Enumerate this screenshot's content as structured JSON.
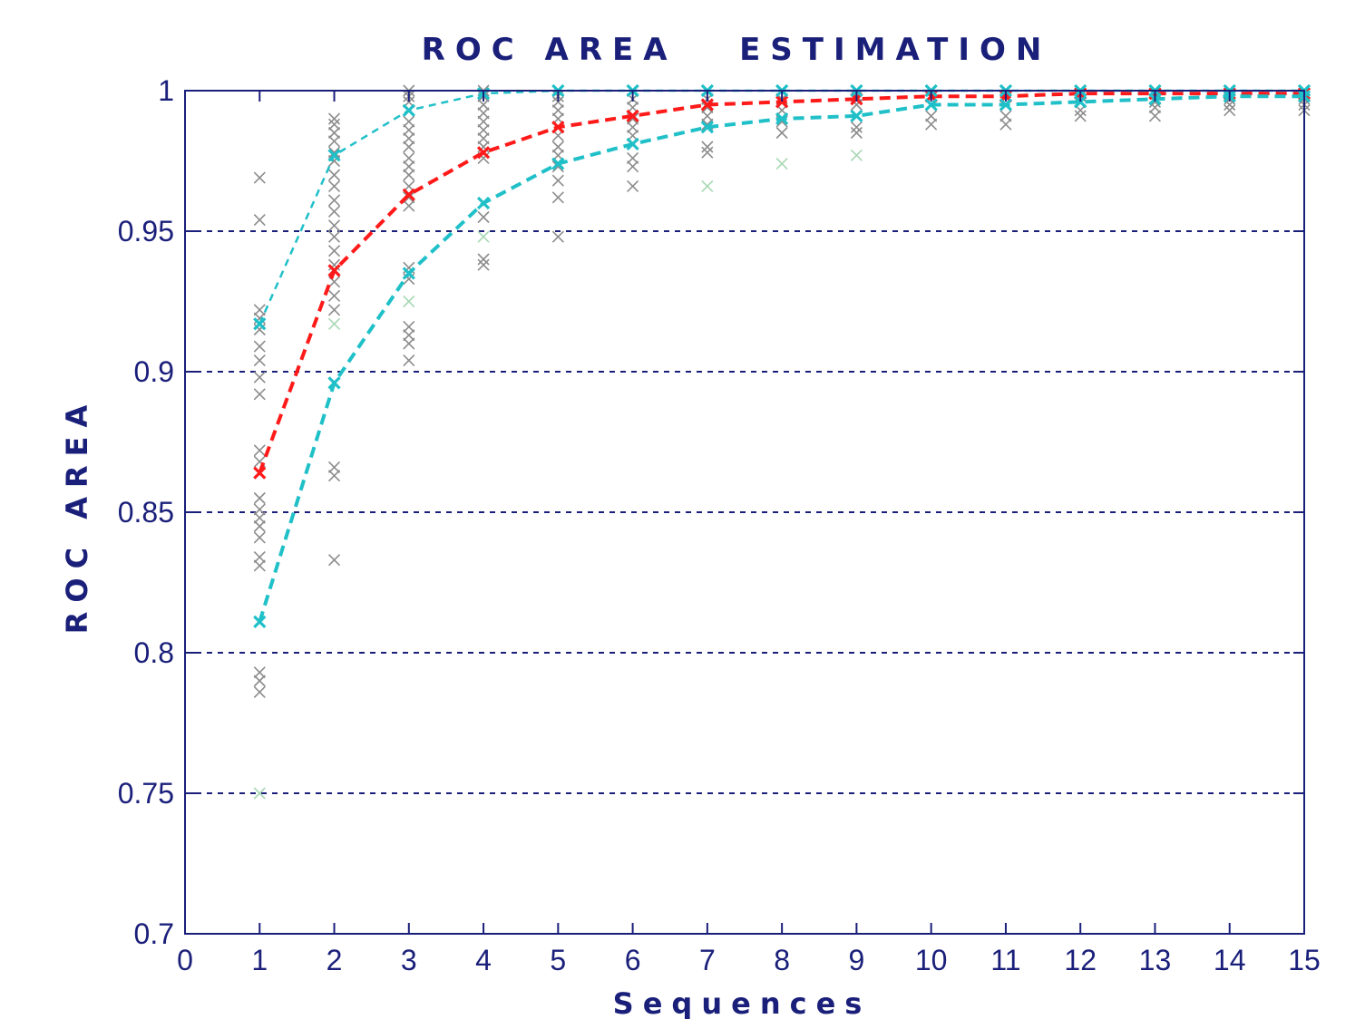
{
  "chart_data": {
    "type": "line",
    "title": "ROC AREA   ESTIMATION",
    "xlabel": "Sequences",
    "ylabel": "ROC AREA",
    "xlim": [
      0,
      15
    ],
    "ylim": [
      0.7,
      1
    ],
    "xticks": [
      "0",
      "1",
      "2",
      "3",
      "4",
      "5",
      "6",
      "7",
      "8",
      "9",
      "10",
      "11",
      "12",
      "13",
      "14",
      "15"
    ],
    "yticks": [
      {
        "value": 0.7,
        "label": "0.7"
      },
      {
        "value": 0.75,
        "label": "0.75"
      },
      {
        "value": 0.8,
        "label": "0.8"
      },
      {
        "value": 0.85,
        "label": "0.85"
      },
      {
        "value": 0.9,
        "label": "0.9"
      },
      {
        "value": 0.95,
        "label": "0.95"
      },
      {
        "value": 1,
        "label": "1"
      }
    ],
    "grid": "horizontal-dashed",
    "x": [
      1,
      2,
      3,
      4,
      5,
      6,
      7,
      8,
      9,
      10,
      11,
      12,
      13,
      14,
      15
    ],
    "series": [
      {
        "role": "mean",
        "color": "#ff1a1a",
        "style": "dashed-thick",
        "values": [
          0.864,
          0.936,
          0.963,
          0.978,
          0.987,
          0.991,
          0.995,
          0.996,
          0.997,
          0.998,
          0.998,
          0.999,
          0.999,
          0.999,
          0.999
        ]
      },
      {
        "role": "upper",
        "color": "#20c0c8",
        "style": "dashed-thin",
        "values": [
          0.917,
          0.977,
          0.993,
          0.999,
          1.0,
          1.0,
          1.0,
          1.0,
          1.0,
          1.0,
          1.0,
          1.0,
          1.0,
          1.0,
          1.0
        ]
      },
      {
        "role": "lower",
        "color": "#20c0c8",
        "style": "dashed-thick",
        "values": [
          0.811,
          0.896,
          0.935,
          0.96,
          0.974,
          0.981,
          0.987,
          0.99,
          0.991,
          0.995,
          0.995,
          0.996,
          0.997,
          0.998,
          0.998
        ]
      }
    ],
    "samples": [
      {
        "x": 1,
        "values": [
          0.969,
          0.954,
          0.922,
          0.919,
          0.915,
          0.909,
          0.904,
          0.898,
          0.892,
          0.872,
          0.868,
          0.855,
          0.851,
          0.848,
          0.845,
          0.841,
          0.834,
          0.831,
          0.793,
          0.79,
          0.786
        ]
      },
      {
        "x": 2,
        "values": [
          0.99,
          0.988,
          0.985,
          0.982,
          0.978,
          0.975,
          0.97,
          0.966,
          0.961,
          0.957,
          0.952,
          0.948,
          0.943,
          0.938,
          0.932,
          0.927,
          0.922,
          0.866,
          0.863,
          0.833
        ]
      },
      {
        "x": 3,
        "values": [
          1.0,
          0.998,
          0.996,
          0.993,
          0.989,
          0.986,
          0.983,
          0.98,
          0.976,
          0.973,
          0.97,
          0.966,
          0.962,
          0.959,
          0.937,
          0.933,
          0.916,
          0.913,
          0.91,
          0.904
        ]
      },
      {
        "x": 4,
        "values": [
          1.0,
          0.998,
          0.995,
          0.992,
          0.989,
          0.986,
          0.983,
          0.98,
          0.976,
          0.955,
          0.94,
          0.938
        ]
      },
      {
        "x": 5,
        "values": [
          1.0,
          0.998,
          0.996,
          0.993,
          0.99,
          0.987,
          0.984,
          0.98,
          0.977,
          0.973,
          0.968,
          0.962,
          0.948
        ]
      },
      {
        "x": 6,
        "values": [
          1.0,
          0.997,
          0.994,
          0.99,
          0.987,
          0.984,
          0.976,
          0.973,
          0.966
        ]
      },
      {
        "x": 7,
        "values": [
          1.0,
          0.997,
          0.994,
          0.991,
          0.988,
          0.98,
          0.978
        ]
      },
      {
        "x": 8,
        "values": [
          1.0,
          0.997,
          0.993,
          0.989,
          0.985
        ]
      },
      {
        "x": 9,
        "values": [
          1.0,
          0.998,
          0.995,
          0.987,
          0.985
        ]
      },
      {
        "x": 10,
        "values": [
          1.0,
          0.998,
          0.995,
          0.991,
          0.988
        ]
      },
      {
        "x": 11,
        "values": [
          1.0,
          0.998,
          0.995,
          0.991,
          0.988
        ]
      },
      {
        "x": 12,
        "values": [
          1.0,
          0.998,
          0.996,
          0.993,
          0.991
        ]
      },
      {
        "x": 13,
        "values": [
          1.0,
          0.999,
          0.996,
          0.994,
          0.991
        ]
      },
      {
        "x": 14,
        "values": [
          1.0,
          0.999,
          0.997,
          0.995,
          0.993
        ]
      },
      {
        "x": 15,
        "values": [
          1.0,
          0.999,
          0.997,
          0.995,
          0.993
        ]
      }
    ],
    "outliers": [
      {
        "x": 1,
        "value": 0.75
      },
      {
        "x": 2,
        "value": 0.917
      },
      {
        "x": 3,
        "value": 0.925
      },
      {
        "x": 4,
        "value": 0.948
      },
      {
        "x": 7,
        "value": 0.966
      },
      {
        "x": 8,
        "value": 0.974
      },
      {
        "x": 9,
        "value": 0.977
      }
    ],
    "colors": {
      "axis": "#1a1f7a",
      "grid": "#1a1f7a",
      "sample_marker": "#8c8c8c",
      "outlier_marker": "#a8d8b4",
      "mean": "#ff1a1a",
      "band": "#20c0c8"
    }
  }
}
